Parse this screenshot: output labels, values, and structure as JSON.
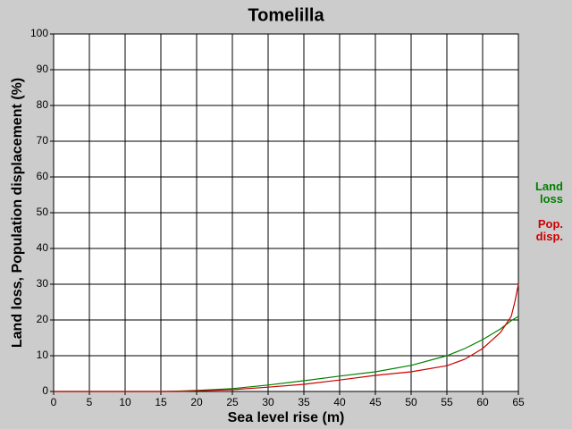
{
  "chart_data": {
    "type": "line",
    "title": "Tomelilla",
    "x_label": "Sea level rise (m)",
    "y_label": "Land loss, Population displacement (%)",
    "xlim": [
      0,
      65
    ],
    "xticks": [
      0,
      5,
      10,
      15,
      20,
      25,
      30,
      35,
      40,
      45,
      50,
      55,
      60,
      65
    ],
    "ylim": [
      0,
      100
    ],
    "yticks": [
      0,
      10,
      20,
      30,
      40,
      50,
      60,
      70,
      80,
      90,
      100
    ],
    "grid": true,
    "x": [
      0,
      5,
      10,
      15,
      17.5,
      20,
      25,
      30,
      35,
      40,
      45,
      50,
      55,
      57.5,
      60,
      62.5,
      64,
      64.5,
      65
    ],
    "series": [
      {
        "name": "Land loss",
        "color": "#008000",
        "values": [
          0,
          0,
          0,
          0,
          0.1,
          0.3,
          0.8,
          1.8,
          3,
          4.3,
          5.5,
          7.3,
          10,
          12,
          14.5,
          17.5,
          19.8,
          20.4,
          21
        ]
      },
      {
        "name": "Pop. disp.",
        "color": "#cc0000",
        "values": [
          0,
          0,
          0,
          0,
          0,
          0.2,
          0.5,
          1.2,
          2,
          3.2,
          4.5,
          5.5,
          7.2,
          9,
          12,
          16.5,
          21,
          25,
          30
        ]
      }
    ]
  }
}
